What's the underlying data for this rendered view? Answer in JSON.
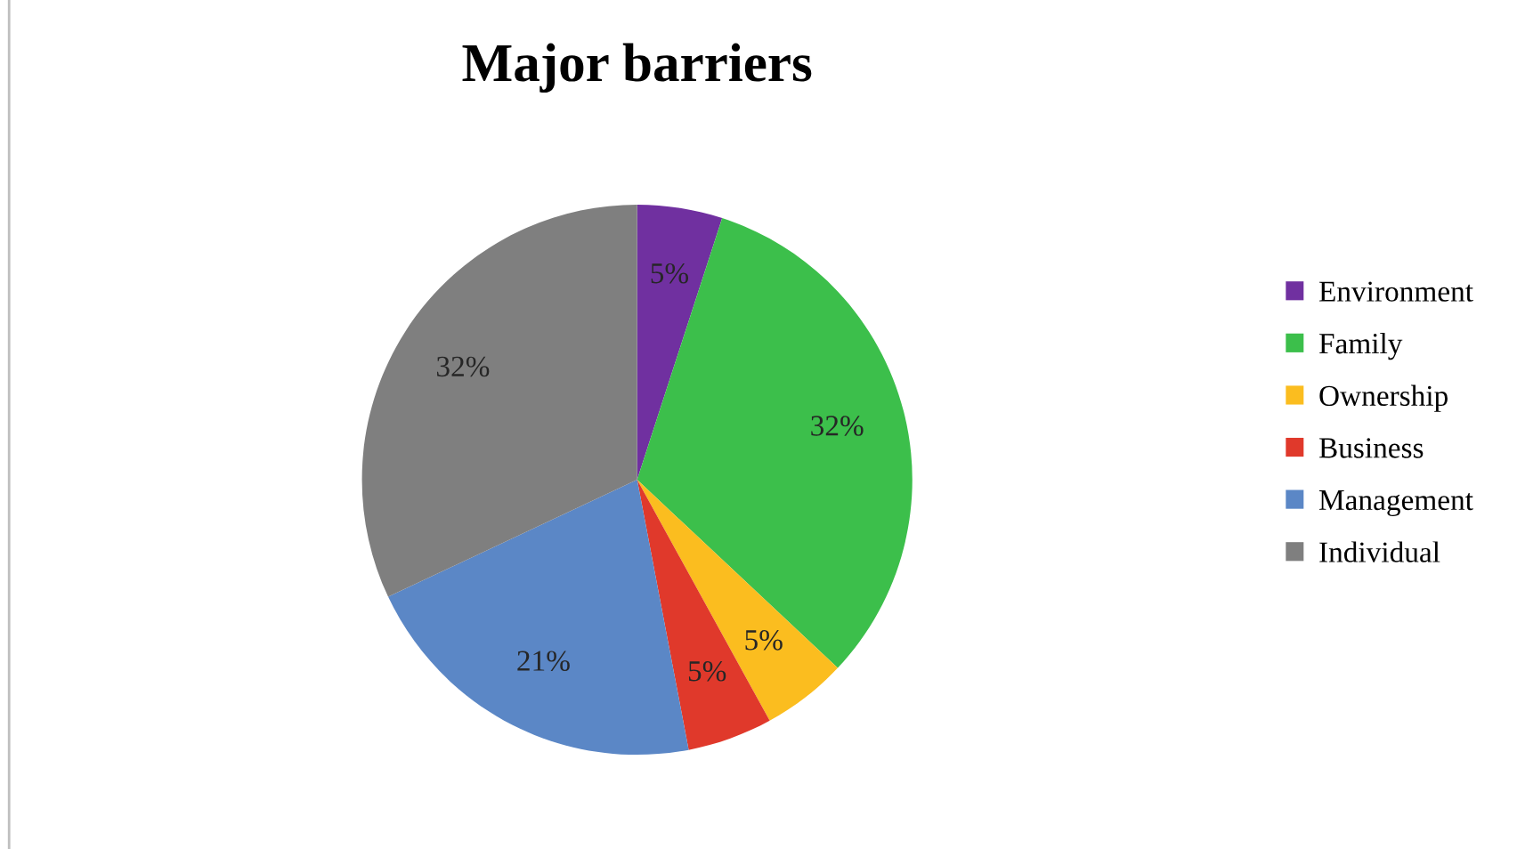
{
  "chart_data": {
    "type": "pie",
    "title": "Major barriers",
    "categories": [
      "Environment",
      "Family",
      "Ownership",
      "Business",
      "Management",
      "Individual"
    ],
    "values": [
      5,
      32,
      5,
      5,
      21,
      32
    ],
    "colors": [
      "#7030a0",
      "#3cbf4b",
      "#fbbd1f",
      "#e0392b",
      "#5b87c6",
      "#7f7f7f"
    ],
    "value_labels": [
      "5%",
      "32%",
      "5%",
      "5%",
      "21%",
      "32%"
    ],
    "legend": "right"
  }
}
